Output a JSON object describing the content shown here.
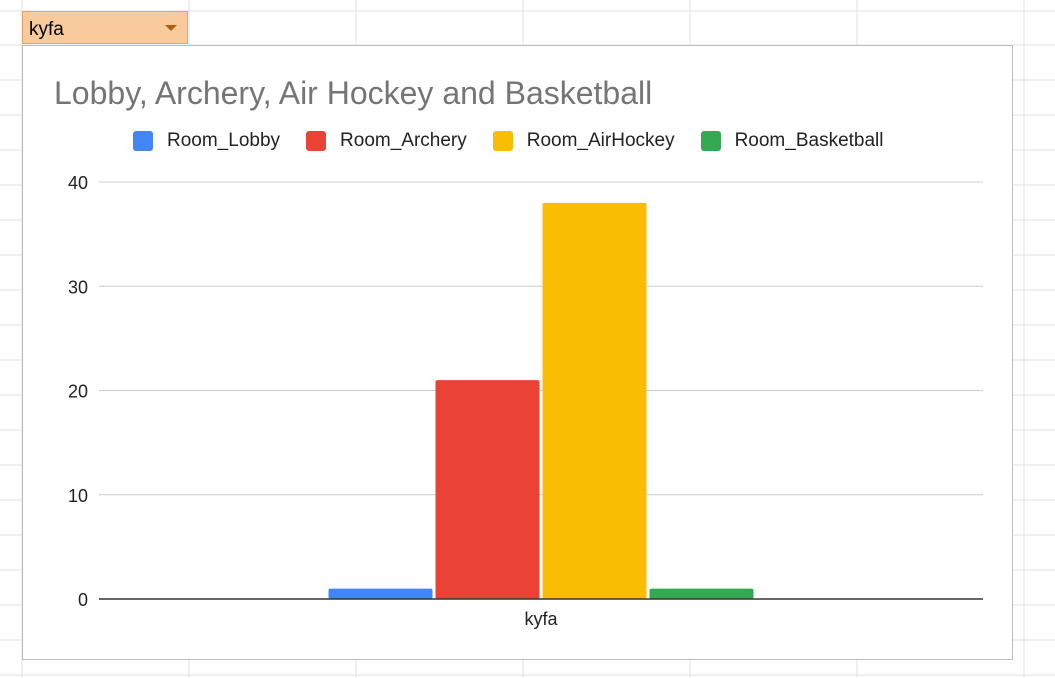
{
  "filter": {
    "value": "kyfa"
  },
  "chart_data": {
    "type": "bar",
    "title": "Lobby, Archery, Air Hockey and Basketball",
    "xlabel": "",
    "ylabel": "",
    "categories": [
      "kyfa"
    ],
    "series": [
      {
        "name": "Room_Lobby",
        "color": "#4285f4",
        "values": [
          1
        ]
      },
      {
        "name": "Room_Archery",
        "color": "#ea4335",
        "values": [
          21
        ]
      },
      {
        "name": "Room_AirHockey",
        "color": "#fbbc04",
        "values": [
          38
        ]
      },
      {
        "name": "Room_Basketball",
        "color": "#34a853",
        "values": [
          1
        ]
      }
    ],
    "ylim": [
      0,
      40
    ],
    "yticks": [
      "0",
      "10",
      "20",
      "30",
      "40"
    ],
    "grid": true,
    "legend_position": "top"
  }
}
